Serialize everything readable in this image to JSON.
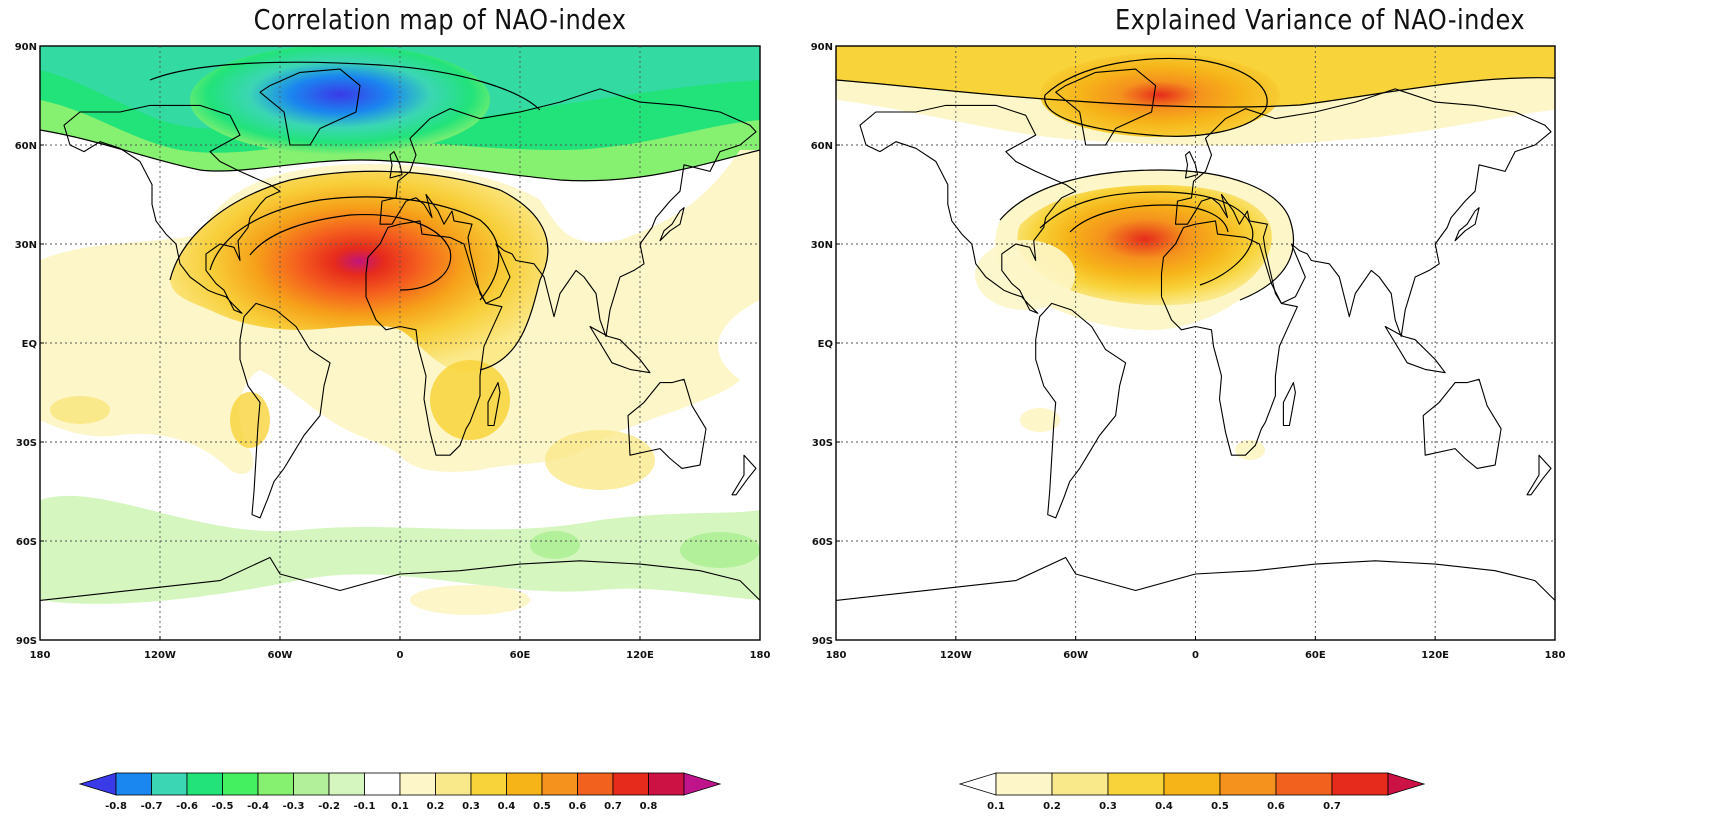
{
  "panels": [
    {
      "title": "Correlation map of NAO-index",
      "lat_labels": [
        "90N",
        "60N",
        "30N",
        "EQ",
        "30S",
        "60S",
        "90S"
      ],
      "lon_labels": [
        "180",
        "120W",
        "60W",
        "0",
        "60E",
        "120E",
        "180"
      ],
      "colorbar": {
        "labels": [
          "-0.8",
          "-0.7",
          "-0.6",
          "-0.5",
          "-0.4",
          "-0.3",
          "-0.2",
          "-0.1",
          "0.1",
          "0.2",
          "0.3",
          "0.4",
          "0.5",
          "0.6",
          "0.7",
          "0.8"
        ],
        "colors": [
          "#3a3ae8",
          "#1a86ef",
          "#3bd6b4",
          "#22e37a",
          "#44f060",
          "#86f070",
          "#b2f09a",
          "#d6f6c0",
          "#ffffff",
          "#fdf6c8",
          "#fae98a",
          "#f8d33a",
          "#f6b419",
          "#f5921d",
          "#f2611e",
          "#e62b1c",
          "#cc1144",
          "#c0148c"
        ]
      }
    },
    {
      "title": "Explained Variance of NAO-index",
      "lat_labels": [
        "90N",
        "60N",
        "30N",
        "EQ",
        "30S",
        "60S",
        "90S"
      ],
      "lon_labels": [
        "180",
        "120W",
        "60W",
        "0",
        "60E",
        "120E",
        "180"
      ],
      "colorbar": {
        "labels": [
          "0.1",
          "0.2",
          "0.3",
          "0.4",
          "0.5",
          "0.6",
          "0.7"
        ],
        "colors": [
          "#ffffff",
          "#fdf6c8",
          "#fae98a",
          "#f8d33a",
          "#f6b419",
          "#f5921d",
          "#f2611e",
          "#e62b1c",
          "#cc1144"
        ]
      }
    }
  ]
}
